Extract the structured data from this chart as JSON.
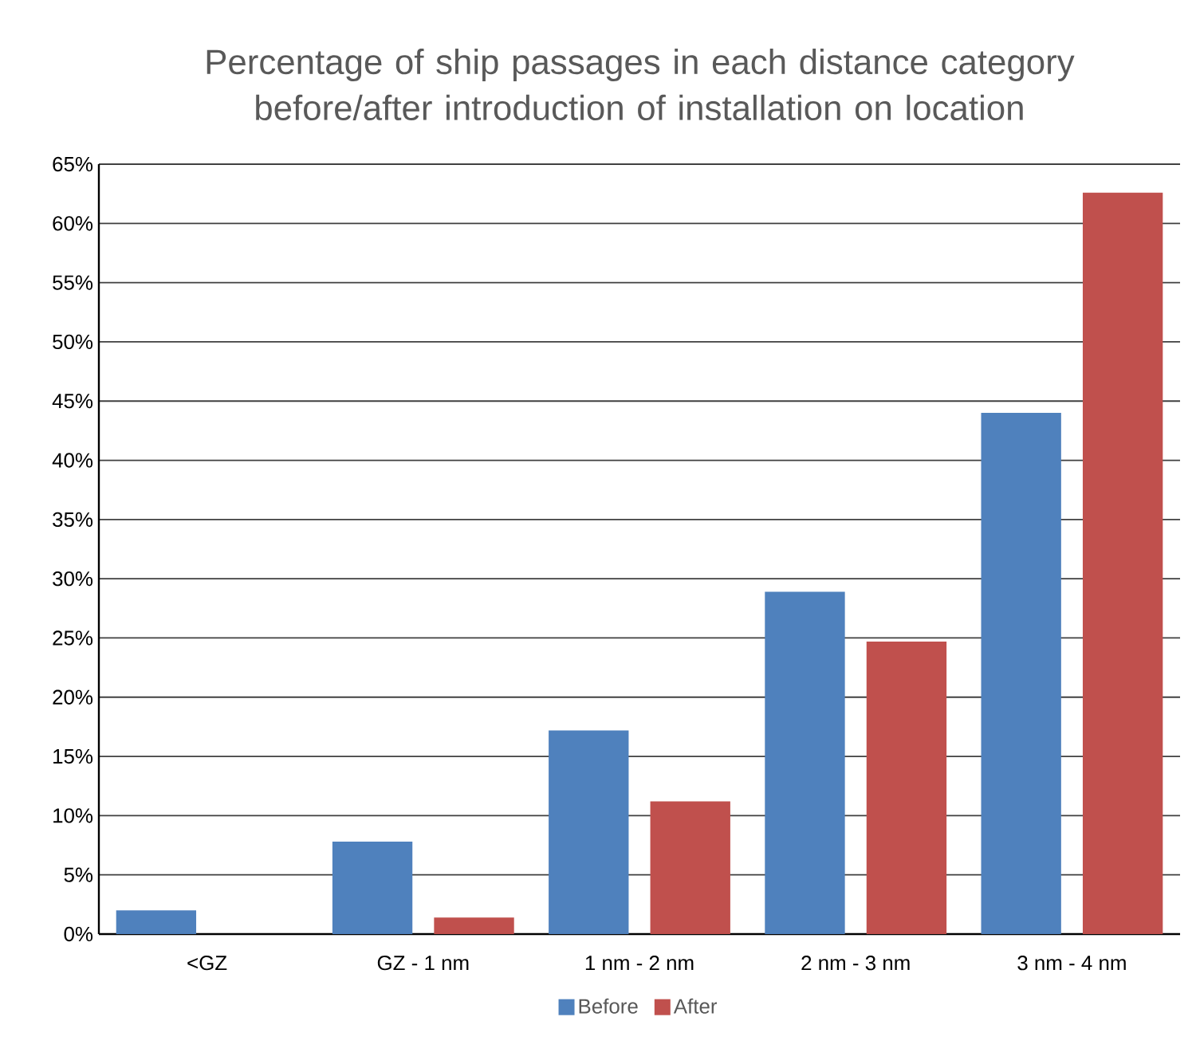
{
  "chart_data": {
    "type": "bar",
    "title": "Percentage of ship passages in each distance category before/after introduction of installation on location",
    "categories": [
      "<GZ",
      "GZ - 1 nm",
      "1 nm - 2 nm",
      "2 nm - 3 nm",
      "3 nm - 4 nm"
    ],
    "series": [
      {
        "name": "Before",
        "color": "#4f81bd",
        "values": [
          2.0,
          7.8,
          17.2,
          28.9,
          44.0
        ]
      },
      {
        "name": "After",
        "color": "#c0504d",
        "values": [
          0,
          1.4,
          11.2,
          24.7,
          62.6
        ]
      }
    ],
    "ylim": [
      0,
      65
    ],
    "yticks": [
      {
        "value": 0,
        "label": "0%"
      },
      {
        "value": 5,
        "label": "5%"
      },
      {
        "value": 10,
        "label": "10%"
      },
      {
        "value": 15,
        "label": "15%"
      },
      {
        "value": 20,
        "label": "20%"
      },
      {
        "value": 25,
        "label": "25%"
      },
      {
        "value": 30,
        "label": "30%"
      },
      {
        "value": 35,
        "label": "35%"
      },
      {
        "value": 40,
        "label": "40%"
      },
      {
        "value": 45,
        "label": "45%"
      },
      {
        "value": 50,
        "label": "50%"
      },
      {
        "value": 55,
        "label": "55%"
      },
      {
        "value": 60,
        "label": "60%"
      },
      {
        "value": 65,
        "label": "65%"
      }
    ],
    "grid": "y",
    "legend": "bottom"
  }
}
